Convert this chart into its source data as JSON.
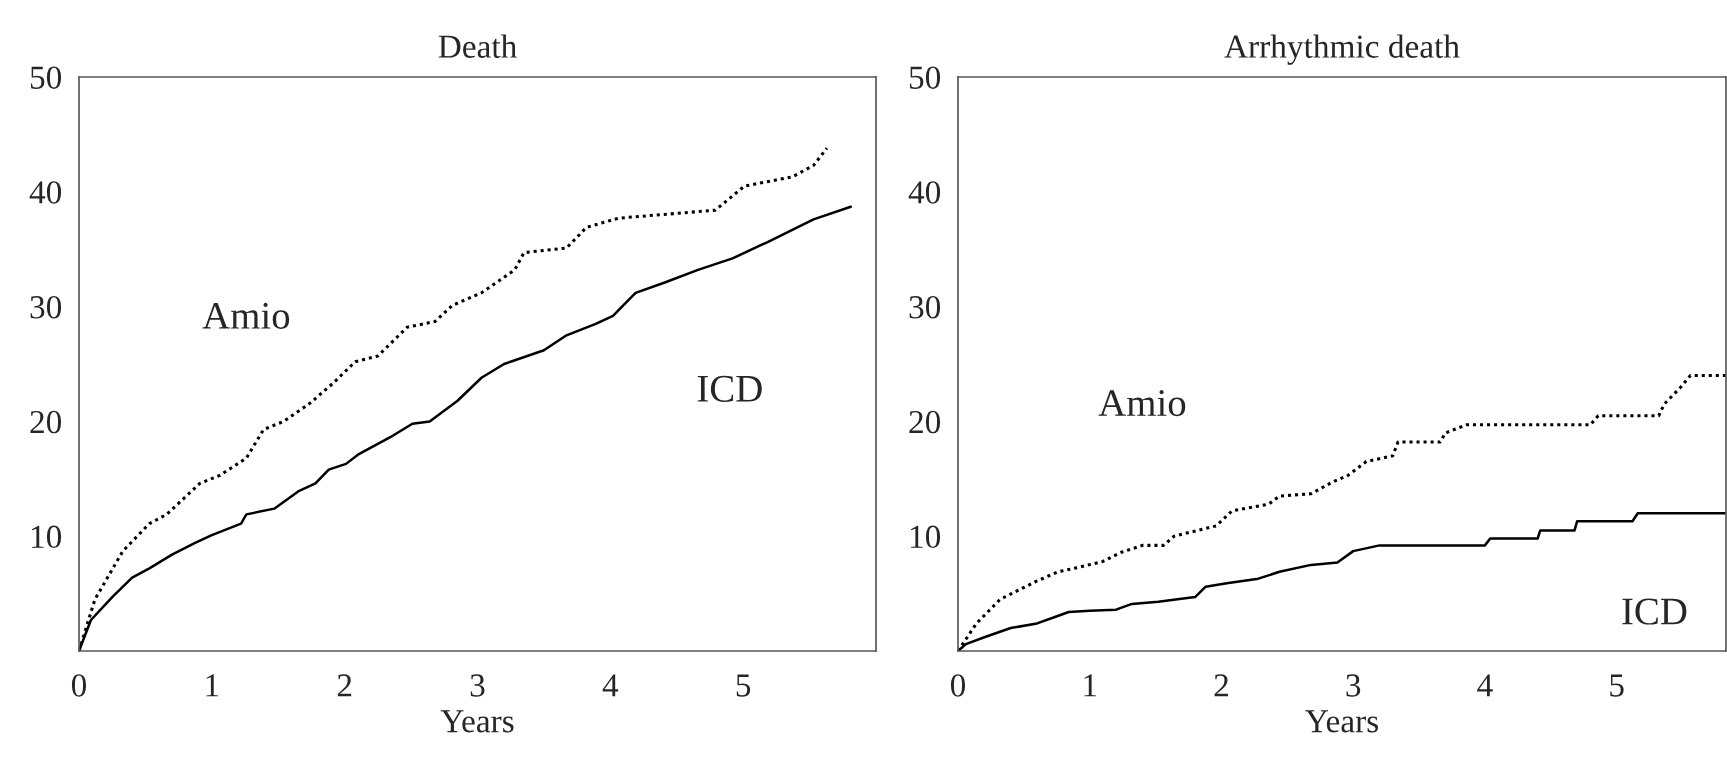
{
  "chart_data": [
    {
      "type": "line",
      "title": "Death",
      "xlabel": "Years",
      "xlim": [
        0,
        6
      ],
      "xticks": [
        0,
        1,
        2,
        3,
        4,
        5
      ],
      "ylim": [
        0,
        50
      ],
      "yticks": [
        10,
        20,
        30,
        40,
        50
      ],
      "grid": false,
      "legend": false,
      "series": [
        {
          "name": "Amio",
          "color": "#000000",
          "line_style": "dotted",
          "x": [
            0,
            0.12,
            0.33,
            0.53,
            0.66,
            0.91,
            1.06,
            1.26,
            1.39,
            1.54,
            1.73,
            1.91,
            2.08,
            2.25,
            2.47,
            2.68,
            2.81,
            3.03,
            3.28,
            3.35,
            3.67,
            3.82,
            4.06,
            4.79,
            5.01,
            5.37,
            5.53,
            5.63
          ],
          "values": [
            0,
            4.5,
            8.7,
            11.1,
            11.9,
            14.6,
            15.3,
            16.8,
            19.3,
            20.0,
            21.5,
            23.3,
            25.2,
            25.7,
            28.2,
            28.7,
            30.1,
            31.2,
            33.2,
            34.7,
            35.1,
            36.9,
            37.7,
            38.4,
            40.5,
            41.3,
            42.3,
            43.8
          ]
        },
        {
          "name": "ICD",
          "color": "#000000",
          "line_style": "solid",
          "x": [
            0,
            0.09,
            0.25,
            0.4,
            0.53,
            0.7,
            0.87,
            1.0,
            1.22,
            1.26,
            1.47,
            1.65,
            1.78,
            1.88,
            2.01,
            2.1,
            2.34,
            2.51,
            2.64,
            2.85,
            3.03,
            3.2,
            3.5,
            3.67,
            3.89,
            4.02,
            4.19,
            4.41,
            4.66,
            4.92,
            5.18,
            5.53,
            5.81
          ],
          "values": [
            0,
            2.7,
            4.7,
            6.4,
            7.2,
            8.4,
            9.4,
            10.1,
            11.1,
            11.9,
            12.4,
            13.9,
            14.6,
            15.8,
            16.3,
            17.1,
            18.6,
            19.8,
            20.0,
            21.8,
            23.8,
            25.0,
            26.2,
            27.5,
            28.5,
            29.2,
            31.2,
            32.1,
            33.2,
            34.2,
            35.6,
            37.6,
            38.7
          ]
        }
      ]
    },
    {
      "type": "line",
      "title": "Arrhythmic death",
      "xlabel": "Years",
      "xlim": [
        0,
        5.83
      ],
      "xticks": [
        0,
        1,
        2,
        3,
        4,
        5
      ],
      "ylim": [
        0,
        50
      ],
      "yticks": [
        10,
        20,
        30,
        40,
        50
      ],
      "grid": false,
      "legend": false,
      "series": [
        {
          "name": "Amio",
          "color": "#000000",
          "line_style": "dotted",
          "x": [
            0,
            0.14,
            0.32,
            0.6,
            0.76,
            0.92,
            1.1,
            1.24,
            1.4,
            1.56,
            1.64,
            1.96,
            2.08,
            2.36,
            2.44,
            2.68,
            2.84,
            2.96,
            3.1,
            3.3,
            3.34,
            3.66,
            3.7,
            3.86,
            4.8,
            4.86,
            5.32,
            5.36,
            5.48,
            5.56,
            5.83
          ],
          "values": [
            0,
            2.4,
            4.5,
            6.1,
            6.9,
            7.3,
            7.8,
            8.6,
            9.2,
            9.2,
            10.0,
            10.9,
            12.2,
            12.8,
            13.5,
            13.7,
            14.7,
            15.3,
            16.5,
            17.0,
            18.2,
            18.2,
            19.0,
            19.7,
            19.7,
            20.5,
            20.5,
            21.5,
            22.9,
            24.0,
            24.0
          ]
        },
        {
          "name": "ICD",
          "color": "#000000",
          "line_style": "solid",
          "x": [
            0,
            0.06,
            0.2,
            0.4,
            0.6,
            0.72,
            0.84,
            1.0,
            1.2,
            1.32,
            1.52,
            1.8,
            1.88,
            2.04,
            2.28,
            2.44,
            2.68,
            2.88,
            3.0,
            3.2,
            4.0,
            4.04,
            4.4,
            4.42,
            4.68,
            4.7,
            5.12,
            5.16,
            5.83
          ],
          "values": [
            0,
            0.6,
            1.2,
            2.0,
            2.4,
            2.9,
            3.4,
            3.5,
            3.6,
            4.1,
            4.3,
            4.7,
            5.6,
            5.9,
            6.3,
            6.9,
            7.5,
            7.7,
            8.7,
            9.2,
            9.2,
            9.8,
            9.8,
            10.5,
            10.5,
            11.3,
            11.3,
            12.0,
            12.0
          ]
        }
      ]
    }
  ]
}
